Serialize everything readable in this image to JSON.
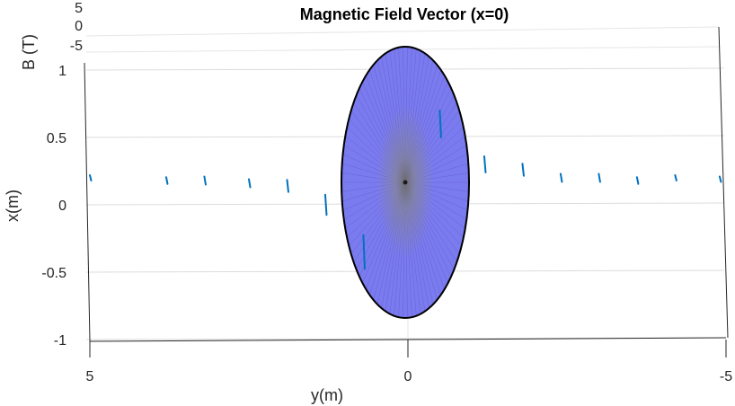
{
  "chart_data": {
    "type": "scatter",
    "title": "Magnetic Field Vector (x=0)",
    "xlabel": "y(m)",
    "ylabel": "x(m)",
    "zlabel": "B (T)",
    "x_ticks": [
      "5",
      "0",
      "-5"
    ],
    "y_ticks": [
      "1",
      "0.5",
      "0",
      "-0.5",
      "-1"
    ],
    "z_ticks": [
      "5",
      "0",
      "-5"
    ],
    "xlim": [
      5,
      -5
    ],
    "ylim": [
      -1,
      1
    ],
    "zlim": [
      -5,
      5
    ],
    "grid": true,
    "ellipse": {
      "center": [
        0,
        0
      ],
      "y_semi_axis": 1.0,
      "x_semi_axis": 1.0,
      "fill_color": "#7b7bf0",
      "edge_color": "#000000"
    },
    "vector_color": "#0072bd",
    "vectors": [
      {
        "y": 5.0,
        "x": 0.2,
        "length": 0.04
      },
      {
        "y": 3.8,
        "x": 0.18,
        "length": 0.05
      },
      {
        "y": 3.2,
        "x": 0.18,
        "length": 0.06
      },
      {
        "y": 2.5,
        "x": 0.16,
        "length": 0.06
      },
      {
        "y": 1.9,
        "x": 0.14,
        "length": 0.09
      },
      {
        "y": 1.3,
        "x": 0.0,
        "length": 0.15
      },
      {
        "y": 0.7,
        "x": -0.35,
        "length": 0.25
      },
      {
        "y": -0.5,
        "x": 0.6,
        "length": 0.2
      },
      {
        "y": -1.2,
        "x": 0.3,
        "length": 0.12
      },
      {
        "y": -1.8,
        "x": 0.26,
        "length": 0.09
      },
      {
        "y": -2.4,
        "x": 0.2,
        "length": 0.06
      },
      {
        "y": -3.0,
        "x": 0.2,
        "length": 0.06
      },
      {
        "y": -3.6,
        "x": 0.18,
        "length": 0.05
      },
      {
        "y": -4.2,
        "x": 0.2,
        "length": 0.04
      },
      {
        "y": -4.9,
        "x": 0.19,
        "length": 0.04
      }
    ]
  }
}
